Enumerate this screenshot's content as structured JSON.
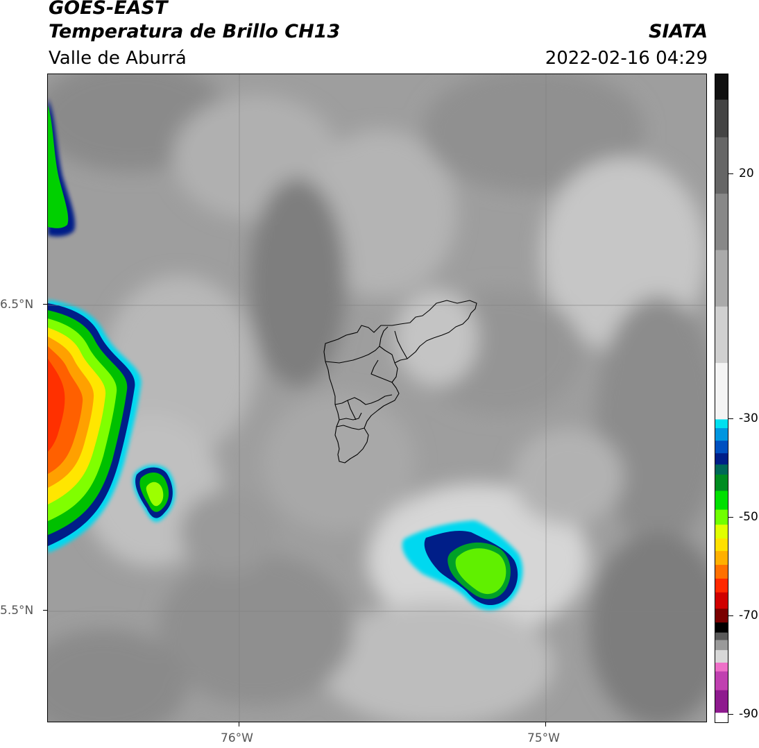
{
  "header": {
    "title": "GOES-EAST",
    "subtitle": "Temperatura de Brillo CH13",
    "region": "Valle de Aburrá",
    "organization": "SIATA",
    "timestamp": "2022-02-16 04:29"
  },
  "map": {
    "lat_labels": [
      "6.5°N",
      "5.5°N"
    ],
    "lon_labels": [
      "76°W",
      "75°W"
    ],
    "background_color": "#9c9c9c",
    "boundary_color": "#000000"
  },
  "colorbar": {
    "tick_labels": [
      "20",
      "-30",
      "-50",
      "-70",
      "-90"
    ],
    "colors": [
      "#ffffff",
      "#8e1a8e",
      "#c040b0",
      "#ee70c8",
      "#d8d8d8",
      "#9a9a9a",
      "#5a5a5a",
      "#000000",
      "#7a0000",
      "#d00000",
      "#ff2800",
      "#ff7000",
      "#ffb000",
      "#ffe000",
      "#e0ff00",
      "#70ff00",
      "#00e000",
      "#008c20",
      "#006858",
      "#001e88",
      "#0050c0",
      "#0096e0",
      "#00e0f0",
      "#f4f4f4",
      "#d0d0d0",
      "#aaaaaa",
      "#888888",
      "#666666",
      "#444444",
      "#101010"
    ]
  }
}
